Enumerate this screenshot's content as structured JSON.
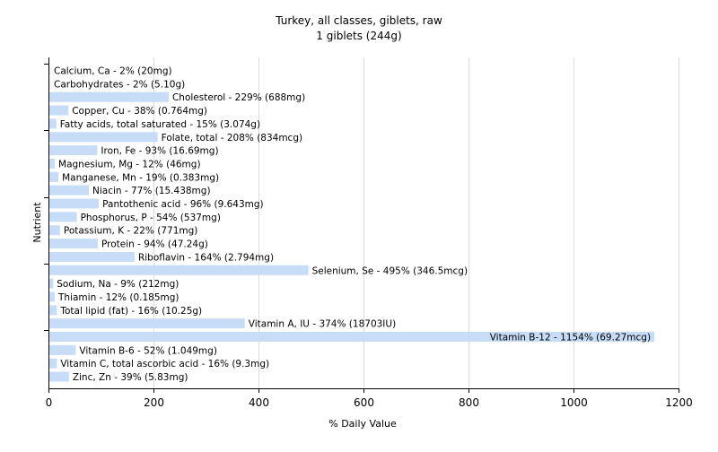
{
  "chart_data": {
    "type": "bar",
    "orientation": "horizontal",
    "title": "Turkey, all classes, giblets, raw",
    "subtitle": "1 giblets (244g)",
    "xlabel": "% Daily Value",
    "ylabel": "Nutrient",
    "xlim": [
      0,
      1200
    ],
    "xticks": [
      "0",
      "200",
      "400",
      "600",
      "800",
      "1000",
      "1200"
    ],
    "grid": "vertical",
    "bar_color": "#c6dcf7",
    "categories": [
      "Calcium, Ca",
      "Carbohydrates",
      "Cholesterol",
      "Copper, Cu",
      "Fatty acids, total saturated",
      "Folate, total",
      "Iron, Fe",
      "Magnesium, Mg",
      "Manganese, Mn",
      "Niacin",
      "Pantothenic acid",
      "Phosphorus, P",
      "Potassium, K",
      "Protein",
      "Riboflavin",
      "Selenium, Se",
      "Sodium, Na",
      "Thiamin",
      "Total lipid (fat)",
      "Vitamin A, IU",
      "Vitamin B-12",
      "Vitamin B-6",
      "Vitamin C, total ascorbic acid",
      "Zinc, Zn"
    ],
    "values": [
      2,
      2,
      229,
      38,
      15,
      208,
      93,
      12,
      19,
      77,
      96,
      54,
      22,
      94,
      164,
      495,
      9,
      12,
      16,
      374,
      1154,
      52,
      16,
      39
    ],
    "labels": [
      "Calcium, Ca - 2% (20mg)",
      "Carbohydrates - 2% (5.10g)",
      "Cholesterol - 229% (688mg)",
      "Copper, Cu - 38% (0.764mg)",
      "Fatty acids, total saturated - 15% (3.074g)",
      "Folate, total - 208% (834mcg)",
      "Iron, Fe - 93% (16.69mg)",
      "Magnesium, Mg - 12% (46mg)",
      "Manganese, Mn - 19% (0.383mg)",
      "Niacin - 77% (15.438mg)",
      "Pantothenic acid - 96% (9.643mg)",
      "Phosphorus, P - 54% (537mg)",
      "Potassium, K - 22% (771mg)",
      "Protein - 94% (47.24g)",
      "Riboflavin - 164% (2.794mg)",
      "Selenium, Se - 495% (346.5mcg)",
      "Sodium, Na - 9% (212mg)",
      "Thiamin - 12% (0.185mg)",
      "Total lipid (fat) - 16% (10.25g)",
      "Vitamin A, IU - 374% (18703IU)",
      "Vitamin B-12 - 1154% (69.27mcg)",
      "Vitamin B-6 - 52% (1.049mg)",
      "Vitamin C, total ascorbic acid - 16% (9.3mg)",
      "Zinc, Zn - 39% (5.83mg)"
    ]
  }
}
